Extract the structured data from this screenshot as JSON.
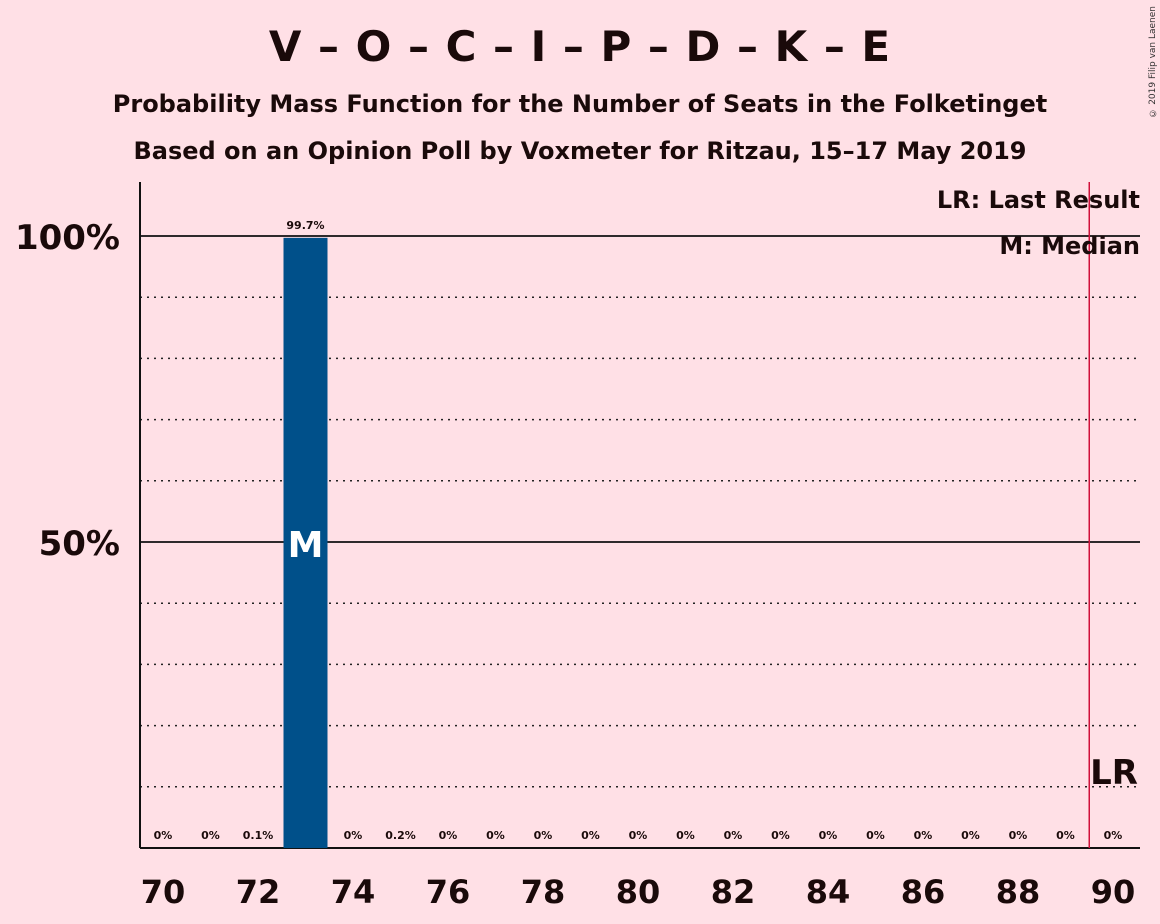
{
  "title": "V – O – C – I – P – D – K – E",
  "subtitle": "Probability Mass Function for the Number of Seats in the Folketinget",
  "subtitle2": "Based on an Opinion Poll by Voxmeter for Ritzau, 15–17 May 2019",
  "copyright": "© 2019 Filip van Laenen",
  "legend": {
    "last_result": "LR: Last Result",
    "median": "M: Median"
  },
  "colors": {
    "background": "#FFE0E6",
    "bar": "#00508A",
    "last_result_line": "#D0103A"
  },
  "chart_data": {
    "type": "bar",
    "x": [
      70,
      71,
      72,
      73,
      74,
      75,
      76,
      77,
      78,
      79,
      80,
      81,
      82,
      83,
      84,
      85,
      86,
      87,
      88,
      89,
      90
    ],
    "values": [
      0,
      0,
      0.1,
      99.7,
      0,
      0.2,
      0,
      0,
      0,
      0,
      0,
      0,
      0,
      0,
      0,
      0,
      0,
      0,
      0,
      0,
      0
    ],
    "labels": [
      "0%",
      "0%",
      "0.1%",
      "99.7%",
      "0%",
      "0.2%",
      "0%",
      "0%",
      "0%",
      "0%",
      "0%",
      "0%",
      "0%",
      "0%",
      "0%",
      "0%",
      "0%",
      "0%",
      "0%",
      "0%",
      "0%"
    ],
    "xticks": [
      70,
      72,
      74,
      76,
      78,
      80,
      82,
      84,
      86,
      88,
      90
    ],
    "yticks": [
      {
        "value": 50,
        "label": "50%"
      },
      {
        "value": 100,
        "label": "100%"
      }
    ],
    "ylim": [
      0,
      100
    ],
    "median": 73,
    "median_label": "M",
    "last_result": 89.5,
    "last_result_label": "LR",
    "grid": "dotted every 10%"
  }
}
